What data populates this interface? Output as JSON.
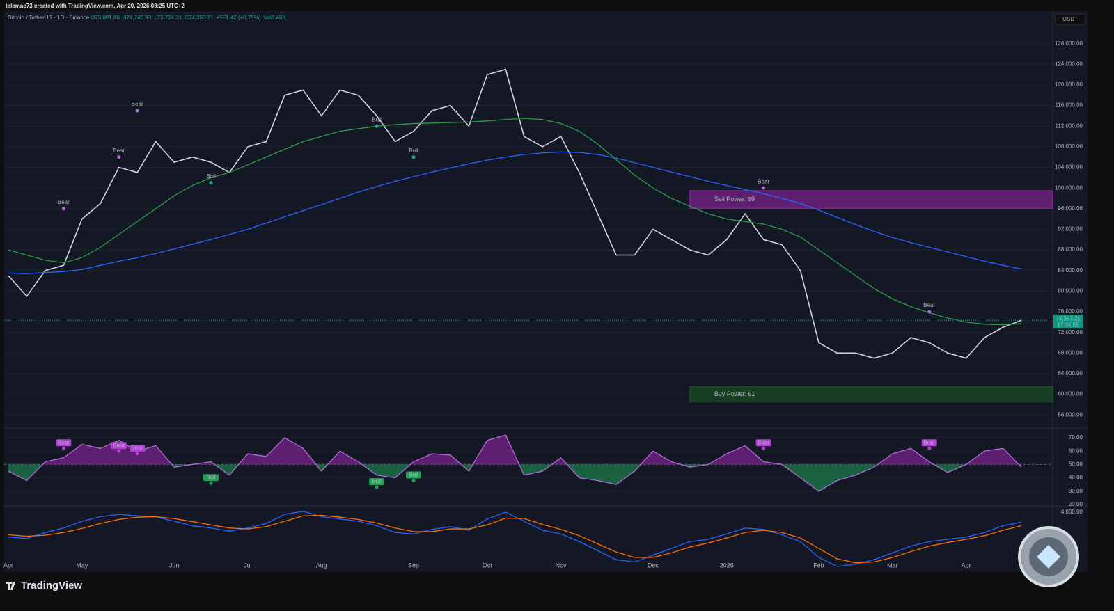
{
  "header": {
    "title": "telemac73 created with TradingView.com, Apr 20, 2026 08:25 UTC+2",
    "symbol": "Bitcoin / TetherUS · 1D · Binance",
    "ohlc": [
      "O73,801.80",
      "H74,746.93",
      "L73,724.31",
      "C74,353.21",
      "+551.42 (+0.75%)",
      "Vol3.46K"
    ],
    "currency": "USDT"
  },
  "chart_data": [
    {
      "type": "line",
      "categories": [
        "Apr",
        null,
        null,
        null,
        "May",
        null,
        null,
        null,
        null,
        "Jun",
        null,
        null,
        null,
        "Jul",
        null,
        null,
        null,
        "Aug",
        null,
        null,
        null,
        null,
        "Sep",
        null,
        null,
        null,
        "Oct",
        null,
        null,
        null,
        "Nov",
        null,
        null,
        null,
        null,
        "Dec",
        null,
        null,
        null,
        "2026",
        null,
        null,
        null,
        null,
        "Feb",
        null,
        null,
        null,
        "Mar",
        null,
        null,
        null,
        "Apr",
        null,
        null,
        null
      ],
      "series": [
        {
          "color": "#d1d4dc",
          "values": [
            83000,
            79000,
            84000,
            85000,
            94000,
            97000,
            104000,
            103000,
            109000,
            105000,
            106000,
            105000,
            103000,
            108000,
            109000,
            118000,
            119000,
            114000,
            119000,
            118000,
            114000,
            109000,
            111000,
            115000,
            116000,
            112000,
            122000,
            123000,
            110000,
            108000,
            110000,
            103000,
            95000,
            87000,
            87000,
            92000,
            90000,
            88000,
            87000,
            90000,
            95000,
            90000,
            89000,
            84000,
            70000,
            68000,
            68000,
            67000,
            68000,
            71000,
            70000,
            68000,
            67000,
            71000,
            73000,
            74353.21
          ]
        },
        {
          "color": "#2962ff",
          "values": [
            83500,
            83400,
            83600,
            83800,
            84200,
            85000,
            85800,
            86500,
            87300,
            88200,
            89100,
            90000,
            91000,
            92000,
            93200,
            94400,
            95600,
            96800,
            98000,
            99200,
            100300,
            101300,
            102200,
            103100,
            103900,
            104700,
            105400,
            106000,
            106500,
            106800,
            107000,
            106900,
            106500,
            105800,
            104900,
            104000,
            103100,
            102200,
            101300,
            100500,
            99700,
            98900,
            98000,
            97000,
            95700,
            94300,
            92900,
            91600,
            90400,
            89400,
            88500,
            87600,
            86700,
            85800,
            85000,
            84300
          ]
        },
        {
          "color": "#2e9b46",
          "values": [
            88000,
            87000,
            86000,
            85500,
            86500,
            88500,
            91000,
            93500,
            96000,
            98500,
            100500,
            102000,
            103000,
            104500,
            106000,
            107500,
            109000,
            110000,
            111000,
            111500,
            112000,
            112300,
            112500,
            112600,
            112700,
            112800,
            113000,
            113300,
            113500,
            113300,
            112500,
            111000,
            108500,
            105500,
            102500,
            100000,
            98000,
            96500,
            95000,
            94000,
            93500,
            93000,
            92000,
            90500,
            88000,
            85500,
            83000,
            80500,
            78500,
            77000,
            75800,
            74800,
            74000,
            73600,
            73500,
            73700
          ]
        }
      ],
      "ylim": [
        53600,
        134300
      ],
      "yticks": [
        {
          "value": 56000,
          "label": "56,000.00"
        },
        {
          "value": 60000,
          "label": "60,000.00"
        },
        {
          "value": 64000,
          "label": "64,000.00"
        },
        {
          "value": 68000,
          "label": "68,000.00"
        },
        {
          "value": 72000,
          "label": "72,000.00"
        },
        {
          "value": 76000,
          "label": "76,000.00"
        },
        {
          "value": 80000,
          "label": "80,000.00"
        },
        {
          "value": 84000,
          "label": "84,000.00"
        },
        {
          "value": 88000,
          "label": "88,000.00"
        },
        {
          "value": 92000,
          "label": "92,000.00"
        },
        {
          "value": 96000,
          "label": "96,000.00"
        },
        {
          "value": 100000,
          "label": "100,000.00"
        },
        {
          "value": 104000,
          "label": "104,000.00"
        },
        {
          "value": 108000,
          "label": "108,000.00"
        },
        {
          "value": 112000,
          "label": "112,000.00"
        },
        {
          "value": 116000,
          "label": "116,000.00"
        },
        {
          "value": 120000,
          "label": "120,000.00"
        },
        {
          "value": 124000,
          "label": "124,000.00"
        },
        {
          "value": 128000,
          "label": "128,000.00"
        }
      ],
      "last_price": {
        "value": 74353.21,
        "label": "74,353.21"
      },
      "countdown": "17:34:55",
      "zones": [
        {
          "label": "Sell Power: 69",
          "from": 37,
          "low": 96000,
          "high": 99500,
          "color": "#9c27b0"
        },
        {
          "label": "Buy Power: 61",
          "from": 37,
          "low": 58500,
          "high": 61500,
          "color": "#1b5e20"
        }
      ],
      "annotations": [
        {
          "label": "Bear",
          "at": 3,
          "value": 96000,
          "color": "#b06dd9"
        },
        {
          "label": "Bear",
          "at": 6,
          "value": 106000,
          "color": "#b06dd9"
        },
        {
          "label": "Bear",
          "at": 7,
          "value": 115000,
          "color": "#b06dd9"
        },
        {
          "label": "Bull",
          "at": 11,
          "value": 101000,
          "color": "#26a69a"
        },
        {
          "label": "Bull",
          "at": 20,
          "value": 112000,
          "color": "#26a69a"
        },
        {
          "label": "Bull",
          "at": 22,
          "value": 106000,
          "color": "#26a69a"
        },
        {
          "label": "Bear",
          "at": 41,
          "value": 100000,
          "color": "#b06dd9"
        },
        {
          "label": "Bear",
          "at": 50,
          "value": 76000,
          "color": "#b06dd9"
        }
      ]
    },
    {
      "type": "line",
      "series": [
        {
          "color": "#b06dd9",
          "values": [
            45,
            38,
            52,
            55,
            65,
            62,
            68,
            60,
            64,
            48,
            50,
            52,
            42,
            58,
            56,
            70,
            62,
            45,
            60,
            52,
            42,
            40,
            52,
            58,
            57,
            45,
            68,
            72,
            42,
            45,
            55,
            40,
            38,
            35,
            45,
            60,
            52,
            48,
            50,
            58,
            64,
            52,
            50,
            40,
            30,
            38,
            42,
            48,
            58,
            62,
            52,
            44,
            50,
            60,
            62,
            48
          ]
        }
      ],
      "baseline": 50,
      "ylim": [
        19,
        76.2
      ],
      "yticks": [
        {
          "value": 20,
          "label": "20.00"
        },
        {
          "value": 30,
          "label": "30.00"
        },
        {
          "value": 40,
          "label": "40.00"
        },
        {
          "value": 50,
          "label": "50.00"
        },
        {
          "value": 60,
          "label": "60.00"
        },
        {
          "value": 70,
          "label": "70.00"
        }
      ],
      "annotations": [
        {
          "label": "Bear",
          "at": 3,
          "value": 62,
          "color": "#b33fd6"
        },
        {
          "label": "Bear",
          "at": 6,
          "value": 60,
          "color": "#b33fd6"
        },
        {
          "label": "Bear",
          "at": 7,
          "value": 58,
          "color": "#b33fd6"
        },
        {
          "label": "Bull",
          "at": 11,
          "value": 36,
          "color": "#22a05a"
        },
        {
          "label": "Bull",
          "at": 20,
          "value": 33,
          "color": "#22a05a"
        },
        {
          "label": "Bull",
          "at": 22,
          "value": 38,
          "color": "#22a05a"
        },
        {
          "label": "Bear",
          "at": 41,
          "value": 62,
          "color": "#b33fd6"
        },
        {
          "label": "Bear",
          "at": 50,
          "value": 62,
          "color": "#b33fd6"
        }
      ]
    },
    {
      "type": "line",
      "series": [
        {
          "color": "#2962ff",
          "values": [
            -1500,
            -1800,
            -500,
            500,
            2000,
            3000,
            3500,
            3200,
            3000,
            2000,
            1000,
            500,
            -200,
            500,
            1500,
            3500,
            4200,
            3000,
            2500,
            2000,
            1000,
            -500,
            -800,
            200,
            800,
            0,
            2500,
            4000,
            2000,
            0,
            -800,
            -2500,
            -4500,
            -6500,
            -7000,
            -5500,
            -4000,
            -2500,
            -2000,
            -800,
            500,
            200,
            -1000,
            -2500,
            -6000,
            -8000,
            -7500,
            -6500,
            -5000,
            -3500,
            -2500,
            -2000,
            -1500,
            -500,
            1000,
            1800
          ]
        },
        {
          "color": "#ff6d00",
          "values": [
            -1000,
            -1300,
            -1100,
            -500,
            400,
            1500,
            2400,
            2900,
            3000,
            2600,
            1900,
            1200,
            500,
            300,
            800,
            2000,
            3200,
            3300,
            2900,
            2400,
            1600,
            500,
            -300,
            -300,
            300,
            300,
            1200,
            2700,
            2600,
            1300,
            200,
            -1200,
            -3000,
            -4800,
            -6000,
            -6000,
            -5000,
            -3700,
            -2800,
            -1700,
            -500,
            0,
            -500,
            -1700,
            -4000,
            -6300,
            -7200,
            -7000,
            -6000,
            -4700,
            -3500,
            -2700,
            -2000,
            -1200,
            0,
            1000
          ]
        }
      ],
      "ylim": [
        -9230,
        5080
      ],
      "yticks": [
        {
          "value": 4000,
          "label": "4,000.00"
        }
      ]
    }
  ],
  "footer": {
    "brand": "TradingView"
  }
}
